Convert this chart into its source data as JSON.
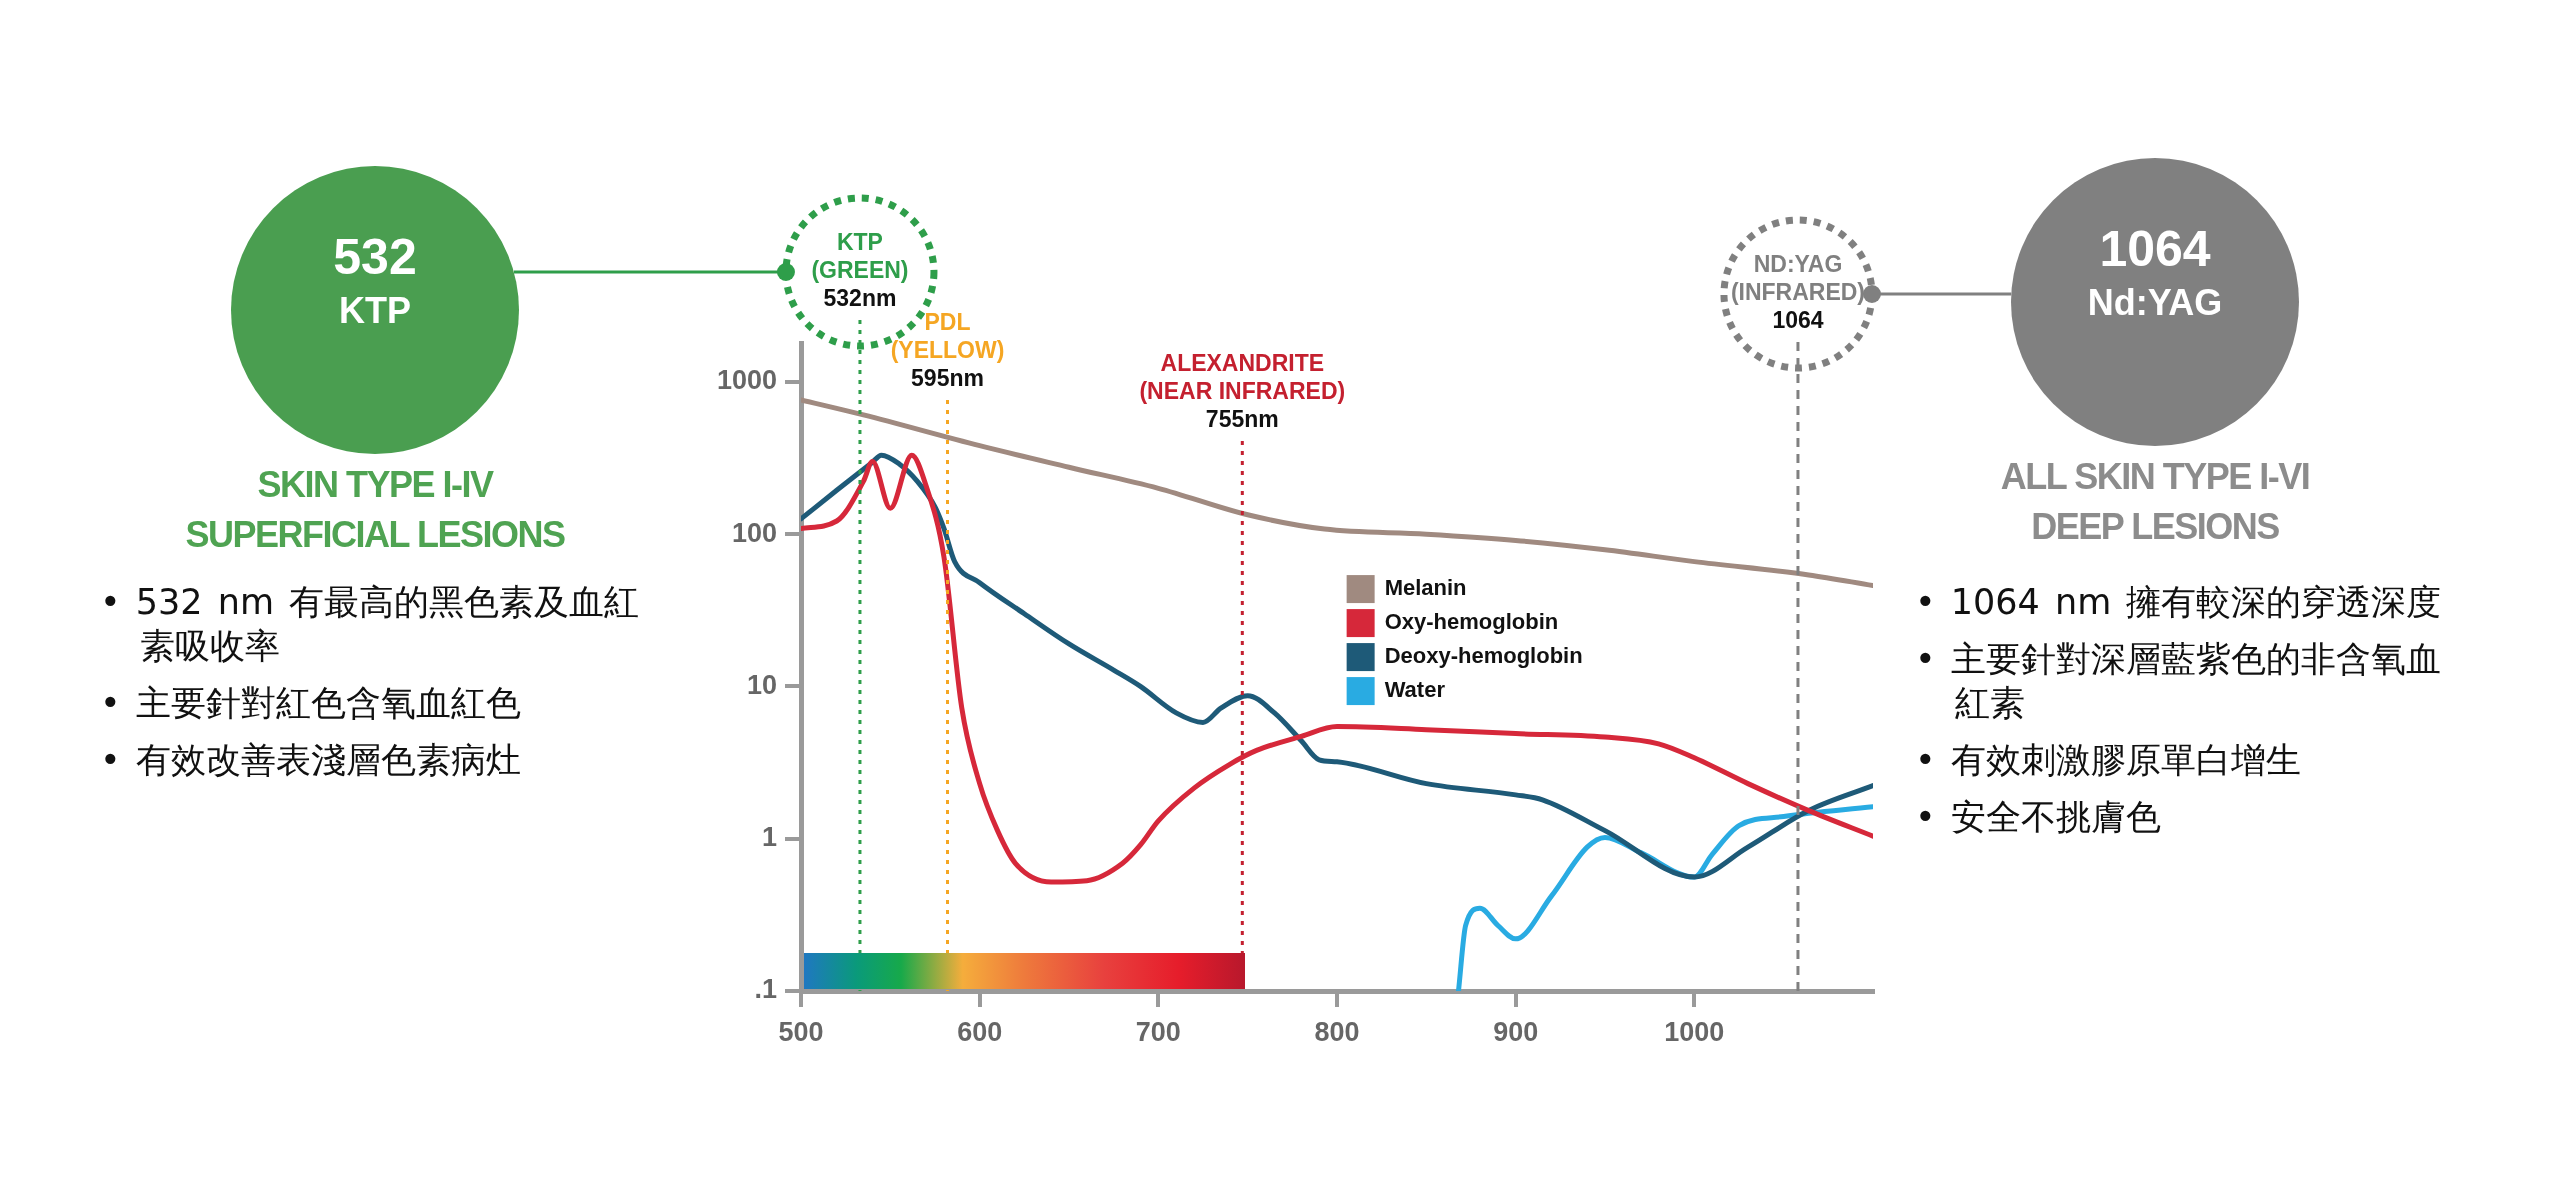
{
  "chart_data": [
    {
      "type": "other",
      "title": "532",
      "subtitle": "KTP",
      "annotations": [
        "SKIN TYPE I-IV\nSUPERFICIAL LESIONS",
        "• 532 nm 有最高的黑色素及血紅素吸收率",
        "• 主要針對紅色含氧血紅色",
        "• 有效改善表淺層色素病灶"
      ]
    },
    {
      "type": "line",
      "log": "y",
      "marker": "none",
      "legend": "center",
      "xlim": [
        500,
        1100
      ],
      "xticks": [
        500,
        600,
        700,
        800,
        900,
        1000
      ],
      "ylim": [
        0.1,
        1800
      ],
      "yticks": [
        {
          "value": 0.1,
          "label": ".1"
        },
        1,
        10,
        100,
        1000
      ],
      "series": [
        {
          "name": "Melanin",
          "color": "#a08a80",
          "x": [
            500,
            535,
            600,
            650,
            700,
            750,
            793,
            850,
            900,
            950,
            1000,
            1064,
            1100
          ],
          "values": [
            762,
            607,
            381,
            275,
            200,
            134,
            108,
            100,
            91,
            79,
            66,
            54,
            46
          ]
        },
        {
          "name": "Oxy-hemoglobin",
          "color": "#d6283a",
          "x": [
            500,
            520,
            535,
            540,
            550,
            562,
            570,
            580,
            590,
            600,
            610,
            620,
            640,
            660,
            680,
            690,
            700,
            720,
            740,
            755,
            780,
            800,
            850,
            900,
            950,
            980,
            1000,
            1030,
            1064,
            1100
          ],
          "values": [
            109,
            122,
            223,
            300,
            148,
            330,
            208,
            71,
            7.2,
            2.3,
            1.13,
            0.69,
            0.52,
            0.53,
            0.69,
            0.91,
            1.31,
            2.15,
            3.08,
            3.8,
            4.7,
            5.45,
            5.2,
            4.9,
            4.65,
            4.2,
            3.4,
            2.3,
            1.53,
            1.04
          ]
        },
        {
          "name": "Deoxy-hemoglobin",
          "color": "#1e5a78",
          "x": [
            500,
            520,
            540,
            545,
            555,
            565,
            575,
            580,
            586,
            600,
            625,
            650,
            675,
            690,
            710,
            725,
            735,
            750,
            765,
            780,
            790,
            800,
            850,
            900,
            915,
            950,
            1000,
            1030,
            1064,
            1100
          ],
          "values": [
            126,
            194,
            297,
            330,
            289,
            223,
            151,
            109,
            66,
            48,
            30,
            19,
            12.8,
            10,
            6.7,
            5.8,
            7.2,
            8.7,
            6.7,
            4.4,
            3.3,
            3.2,
            2.3,
            1.94,
            1.8,
            1.13,
            0.56,
            0.88,
            1.53,
            2.23
          ]
        },
        {
          "name": "Water",
          "color": "#29abe2",
          "x": [
            868,
            872,
            880,
            890,
            900,
            920,
            940,
            950,
            970,
            1000,
            1010,
            1025,
            1050,
            1100
          ],
          "values": [
            0.1,
            0.27,
            0.35,
            0.27,
            0.22,
            0.42,
            0.88,
            1.02,
            0.81,
            0.56,
            0.79,
            1.22,
            1.4,
            1.62
          ]
        }
      ],
      "ref_lines": [
        {
          "axis": "x",
          "value": 533,
          "label": "KTP\n(GREEN)\n532nm",
          "color": "#2e9e4a",
          "line_style": "dotted"
        },
        {
          "axis": "x",
          "value": 582,
          "label": "PDL\n(YELLOW)\n595nm",
          "color": "#f5a623",
          "line_style": "dotted"
        },
        {
          "axis": "x",
          "value": 747,
          "label": "ALEXANDRITE\n(NEAR INFRARED)\n755nm",
          "color": "#c4202f",
          "line_style": "dotted"
        },
        {
          "axis": "x",
          "value": 1058,
          "label": "ND:YAG\n(INFRARED)\n1064",
          "color": "#808080",
          "line_style": "dashed"
        }
      ]
    },
    {
      "type": "other",
      "title": "1064",
      "subtitle": "Nd:YAG",
      "annotations": [
        "ALL SKIN TYPE I-VI\nDEEP LESIONS",
        "• 1064 nm 擁有較深的穿透深度",
        "• 主要針對深層藍紫色的非含氧血紅素",
        "• 有效刺激膠原單白增生",
        "• 安全不挑膚色"
      ]
    }
  ]
}
